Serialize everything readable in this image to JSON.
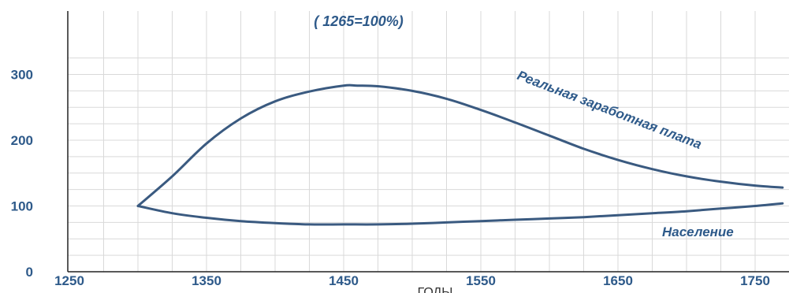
{
  "chart_data": {
    "type": "line",
    "subtitle": "( 1265=100%)",
    "xlabel": "ГОДЫ",
    "ylabel": "",
    "xlim": [
      1250,
      1770
    ],
    "ylim": [
      0,
      330
    ],
    "x_ticks": [
      "1250",
      "1350",
      "1450",
      "1550",
      "1650",
      "1750"
    ],
    "y_ticks": [
      "300",
      "200",
      "100",
      "0"
    ],
    "grid": true,
    "colors": {
      "line": "#3a5a80",
      "text": "#2e5a8a",
      "grid": "#d9d9d9",
      "axis": "#222222"
    },
    "series": [
      {
        "name": "Реальная заработная плата",
        "x": [
          1300,
          1325,
          1350,
          1375,
          1400,
          1425,
          1450,
          1460,
          1475,
          1500,
          1525,
          1550,
          1575,
          1600,
          1625,
          1650,
          1675,
          1700,
          1725,
          1750,
          1770
        ],
        "y": [
          100,
          145,
          195,
          233,
          259,
          274,
          283,
          283,
          282,
          275,
          263,
          246,
          227,
          207,
          187,
          170,
          156,
          145,
          137,
          131,
          128
        ]
      },
      {
        "name": "Население",
        "x": [
          1300,
          1325,
          1350,
          1375,
          1400,
          1425,
          1450,
          1475,
          1500,
          1525,
          1550,
          1575,
          1600,
          1625,
          1650,
          1675,
          1700,
          1725,
          1750,
          1770
        ],
        "y": [
          100,
          89,
          82,
          77,
          74,
          72,
          72,
          72,
          73,
          75,
          77,
          79,
          81,
          83,
          86,
          89,
          92,
          96,
          100,
          104
        ]
      }
    ]
  }
}
